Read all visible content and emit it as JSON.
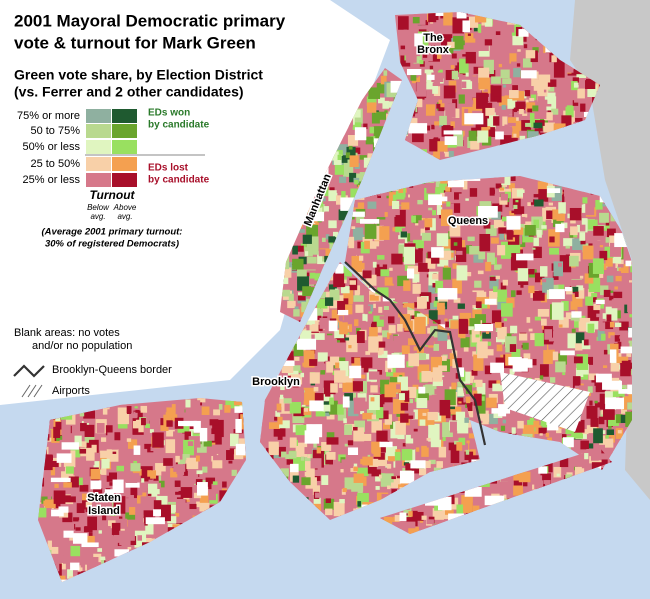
{
  "title": [
    "2001 Mayoral Democratic primary",
    "vote & turnout for Mark Green"
  ],
  "subtitle": [
    "Green vote share, by Election District",
    "(vs. Ferrer and 2 other candidates)"
  ],
  "legend": {
    "rows": [
      {
        "label": "75% or more",
        "colors": [
          "#8fb0a0",
          "#1f5a30"
        ]
      },
      {
        "label": "50 to 75%",
        "colors": [
          "#b9d98f",
          "#6aa52d"
        ]
      },
      {
        "label": "50% or less",
        "colors": [
          "#e0f5c0",
          "#99e060"
        ]
      },
      {
        "label": "25 to 50%",
        "colors": [
          "#f8d0a8",
          "#f4a050"
        ]
      },
      {
        "label": "25% or less",
        "colors": [
          "#d6788a",
          "#a80f2a"
        ]
      }
    ],
    "won": [
      "EDs won",
      "by candidate"
    ],
    "lost": [
      "EDs lost",
      "by candidate"
    ],
    "turnout": "Turnout",
    "below": [
      "Below",
      "avg."
    ],
    "above": [
      "Above",
      "avg."
    ],
    "note": [
      "(Average 2001 primary turnout:",
      "30% of registered Democrats)"
    ]
  },
  "blank": [
    "Blank areas: no votes",
    "and/or no population"
  ],
  "border": "Brooklyn-Queens border",
  "airports": "Airports",
  "places": {
    "bronx": [
      "The",
      "Bronx"
    ],
    "manhattan": "Manhattan",
    "queens": "Queens",
    "brooklyn": "Brooklyn",
    "staten_island": [
      "Staten",
      "Island"
    ]
  }
}
